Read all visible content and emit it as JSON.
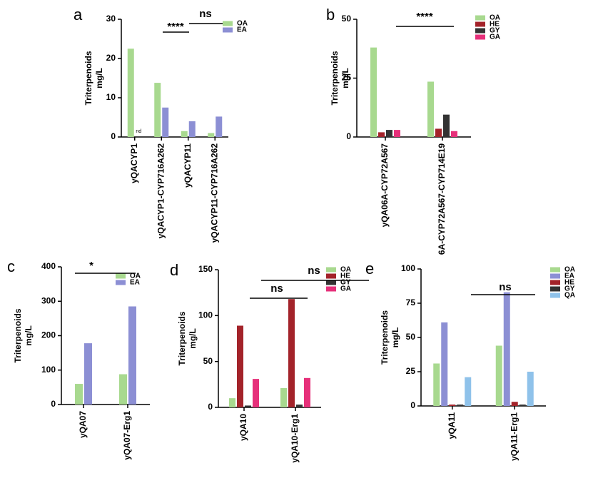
{
  "chart_data": [
    {
      "type": "bar",
      "label": "a",
      "ylabel": [
        "Triterpenoids",
        "mg/L"
      ],
      "categories": [
        "yQACYP1",
        "yQACYP1-CYP716A262",
        "yQACYP11",
        "yQACYP11-CYP716A262"
      ],
      "series": [
        {
          "name": "OA",
          "color": "#a8d98f",
          "values": [
            22.5,
            13.8,
            1.5,
            1.0
          ]
        },
        {
          "name": "EA",
          "color": "#8c8fd4",
          "values": [
            0,
            7.5,
            4.0,
            5.2
          ]
        }
      ],
      "ylim": [
        0,
        30
      ],
      "yticks": [
        0,
        10,
        20,
        30
      ],
      "annotations": [
        "****",
        "ns",
        "nd"
      ]
    },
    {
      "type": "bar",
      "label": "b",
      "ylabel": [
        "Triterpenoids",
        "mg/L"
      ],
      "categories": [
        "yQA06A-CYP72A567",
        "6A-CYP72A567-CYP714E19"
      ],
      "series": [
        {
          "name": "OA",
          "color": "#a8d98f",
          "values": [
            38,
            23.5
          ]
        },
        {
          "name": "HE",
          "color": "#a3232a",
          "values": [
            2,
            3.5
          ]
        },
        {
          "name": "GY",
          "color": "#333333",
          "values": [
            3,
            9.5
          ]
        },
        {
          "name": "GA",
          "color": "#e6307a",
          "values": [
            3,
            2.5
          ]
        }
      ],
      "ylim": [
        0,
        50
      ],
      "yticks": [
        0,
        25,
        50
      ],
      "annotations": [
        "****"
      ]
    },
    {
      "type": "bar",
      "label": "c",
      "ylabel": [
        "Triterpenoids",
        "mg/L"
      ],
      "categories": [
        "yQA07",
        "yQA07-Erg1"
      ],
      "series": [
        {
          "name": "OA",
          "color": "#a8d98f",
          "values": [
            60,
            88
          ]
        },
        {
          "name": "EA",
          "color": "#8c8fd4",
          "values": [
            178,
            285
          ]
        }
      ],
      "ylim": [
        0,
        400
      ],
      "yticks": [
        0,
        100,
        200,
        300,
        400
      ],
      "annotations": [
        "*"
      ]
    },
    {
      "type": "bar",
      "label": "d",
      "ylabel": [
        "Triterpenoids",
        "mg/L"
      ],
      "categories": [
        "yQA10",
        "yQA10-Erg1"
      ],
      "series": [
        {
          "name": "OA",
          "color": "#a8d98f",
          "values": [
            10,
            21
          ]
        },
        {
          "name": "HE",
          "color": "#a3232a",
          "values": [
            89,
            118
          ]
        },
        {
          "name": "GY",
          "color": "#333333",
          "values": [
            2,
            3
          ]
        },
        {
          "name": "GA",
          "color": "#e6307a",
          "values": [
            31,
            32
          ]
        }
      ],
      "ylim": [
        0,
        150
      ],
      "yticks": [
        0,
        50,
        100,
        150
      ],
      "annotations": [
        "ns",
        "ns"
      ]
    },
    {
      "type": "bar",
      "label": "e",
      "ylabel": [
        "Triterpenoids",
        "mg/L"
      ],
      "categories": [
        "yQA11",
        "yQA11-Erg1"
      ],
      "series": [
        {
          "name": "OA",
          "color": "#a8d98f",
          "values": [
            31,
            44
          ]
        },
        {
          "name": "EA",
          "color": "#8c8fd4",
          "values": [
            61,
            83
          ]
        },
        {
          "name": "HE",
          "color": "#a3232a",
          "values": [
            1,
            3
          ]
        },
        {
          "name": "GY",
          "color": "#333333",
          "values": [
            1,
            1
          ]
        },
        {
          "name": "QA",
          "color": "#8fc2ea",
          "values": [
            21,
            25
          ]
        }
      ],
      "ylim": [
        0,
        100
      ],
      "yticks": [
        0,
        25,
        50,
        75,
        100
      ],
      "annotations": [
        "ns"
      ]
    }
  ]
}
